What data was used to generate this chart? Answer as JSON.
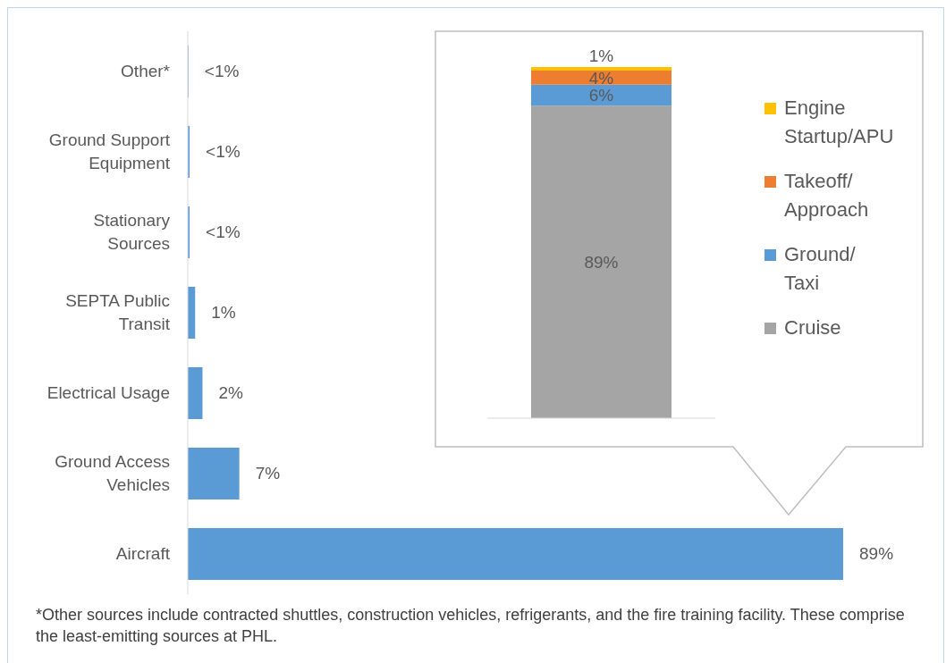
{
  "chart_data": [
    {
      "type": "bar",
      "orientation": "horizontal",
      "categories": [
        "Other*",
        "Ground Support Equipment",
        "Stationary Sources",
        "SEPTA Public Transit",
        "Electrical Usage",
        "Ground Access Vehicles",
        "Aircraft"
      ],
      "values": [
        0.1,
        0.25,
        0.25,
        1,
        2,
        7,
        89
      ],
      "value_labels": [
        "<1%",
        "<1%",
        "<1%",
        "1%",
        "2%",
        "7%",
        "89%"
      ],
      "color": "#5b9bd5",
      "annotations": [
        "*Other sources include contracted shuttles, construction vehicles, refrigerants, and the fire training facility. These comprise the least-emitting sources at PHL."
      ]
    },
    {
      "type": "bar",
      "stacked": true,
      "categories": [
        null
      ],
      "legend": "right",
      "series": [
        {
          "name": "Cruise",
          "color": "#a5a5a5",
          "values": [
            89
          ],
          "value_labels": [
            "89%"
          ]
        },
        {
          "name": "Ground/ Taxi",
          "color": "#5b9bd5",
          "values": [
            6
          ],
          "value_labels": [
            "6%"
          ]
        },
        {
          "name": "Takeoff/ Approach",
          "color": "#ed7d31",
          "values": [
            4
          ],
          "value_labels": [
            "4%"
          ]
        },
        {
          "name": "Engine Startup/APU",
          "color": "#ffc000",
          "values": [
            1
          ],
          "value_labels": [
            "1%"
          ]
        }
      ]
    }
  ]
}
